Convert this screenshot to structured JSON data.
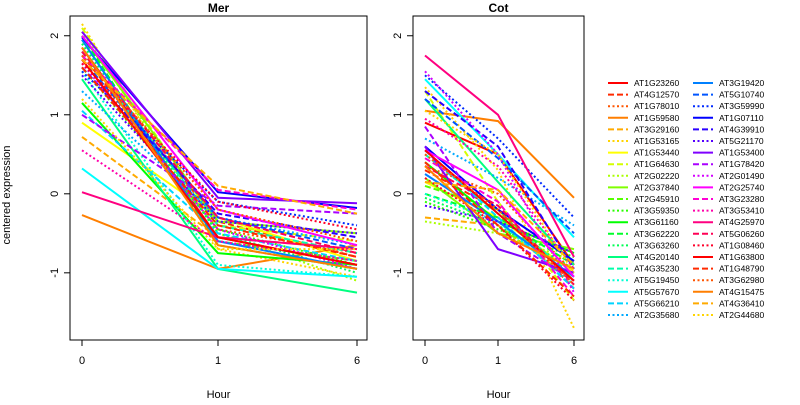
{
  "chart_data": {
    "type": "line",
    "ylabel": "centered expression",
    "xlabel": "Hour",
    "x_ticks": [
      "0",
      "1",
      "6"
    ],
    "y_ticks": [
      "2",
      "1",
      "0",
      "-1"
    ],
    "ylim": [
      -1.85,
      2.25
    ],
    "panels": [
      {
        "title": "Mer",
        "series": [
          {
            "name": "AT1G23260",
            "values": [
              1.85,
              -0.55,
              -0.9
            ]
          },
          {
            "name": "AT4G12570",
            "values": [
              1.75,
              -0.35,
              -0.8
            ]
          },
          {
            "name": "AT1G78010",
            "values": [
              1.7,
              -0.45,
              -0.75
            ]
          },
          {
            "name": "AT1G59580",
            "values": [
              -0.27,
              -0.95,
              -0.65
            ]
          },
          {
            "name": "AT3G29160",
            "values": [
              0.72,
              -0.55,
              -0.7
            ]
          },
          {
            "name": "AT1G53165",
            "values": [
              2.15,
              -0.7,
              -1.05
            ]
          },
          {
            "name": "AT1G53440",
            "values": [
              0.9,
              -0.3,
              -0.85
            ]
          },
          {
            "name": "AT1G64630",
            "values": [
              2.1,
              -0.4,
              -0.6
            ]
          },
          {
            "name": "AT2G02220",
            "values": [
              2.05,
              -0.5,
              -1.1
            ]
          },
          {
            "name": "AT2G37840",
            "values": [
              2.0,
              -0.35,
              -0.5
            ]
          },
          {
            "name": "AT2G45910",
            "values": [
              1.95,
              -0.6,
              -0.85
            ]
          },
          {
            "name": "AT3G59350",
            "values": [
              1.6,
              -0.45,
              -0.9
            ]
          },
          {
            "name": "AT3G61160",
            "values": [
              1.15,
              -0.75,
              -0.9
            ]
          },
          {
            "name": "AT3G62220",
            "values": [
              2.0,
              -0.65,
              -0.95
            ]
          },
          {
            "name": "AT3G63260",
            "values": [
              1.9,
              -0.5,
              -1.0
            ]
          },
          {
            "name": "AT4G20140",
            "values": [
              1.45,
              -0.95,
              -1.25
            ]
          },
          {
            "name": "AT4G35230",
            "values": [
              1.8,
              -0.4,
              -0.75
            ]
          },
          {
            "name": "AT5G19450",
            "values": [
              1.55,
              -0.9,
              -1.05
            ]
          },
          {
            "name": "AT5G57670",
            "values": [
              0.32,
              -0.95,
              -1.05
            ]
          },
          {
            "name": "AT5G66210",
            "values": [
              1.05,
              -0.5,
              -0.85
            ]
          },
          {
            "name": "AT2G35680",
            "values": [
              1.3,
              -0.3,
              -0.65
            ]
          },
          {
            "name": "AT3G19420",
            "values": [
              1.95,
              -0.6,
              -0.95
            ]
          },
          {
            "name": "AT5G10740",
            "values": [
              1.7,
              -0.3,
              -0.7
            ]
          },
          {
            "name": "AT3G59990",
            "values": [
              1.55,
              -0.1,
              -0.4
            ]
          },
          {
            "name": "AT1G07110",
            "values": [
              1.98,
              0.02,
              -0.18
            ]
          },
          {
            "name": "AT4G39910",
            "values": [
              1.6,
              -0.25,
              -0.55
            ]
          },
          {
            "name": "AT5G21170",
            "values": [
              1.5,
              -0.35,
              -0.5
            ]
          },
          {
            "name": "AT1G53400",
            "values": [
              2.05,
              -0.05,
              -0.12
            ]
          },
          {
            "name": "AT1G78420",
            "values": [
              1.0,
              -0.15,
              -0.25
            ]
          },
          {
            "name": "AT2G01490",
            "values": [
              1.65,
              -0.45,
              -0.95
            ]
          },
          {
            "name": "AT2G25740",
            "values": [
              2.0,
              -0.2,
              -0.65
            ]
          },
          {
            "name": "AT3G23280",
            "values": [
              1.75,
              0.05,
              -0.2
            ]
          },
          {
            "name": "AT3G53410",
            "values": [
              0.55,
              -0.6,
              -0.85
            ]
          },
          {
            "name": "AT4G25970",
            "values": [
              0.02,
              -0.55,
              -0.7
            ]
          },
          {
            "name": "AT5G06260",
            "values": [
              1.8,
              -0.3,
              -0.75
            ]
          },
          {
            "name": "AT1G08460",
            "values": [
              1.65,
              -0.1,
              -0.45
            ]
          },
          {
            "name": "AT1G63800",
            "values": [
              1.7,
              -0.55,
              -0.9
            ]
          },
          {
            "name": "AT1G48790",
            "values": [
              1.6,
              -0.4,
              -0.8
            ]
          },
          {
            "name": "AT3G62980",
            "values": [
              1.75,
              -0.2,
              -0.6
            ]
          },
          {
            "name": "AT4G15475",
            "values": [
              1.85,
              -0.65,
              -0.95
            ]
          },
          {
            "name": "AT4G36410",
            "values": [
              1.7,
              0.1,
              -0.25
            ]
          },
          {
            "name": "AT2G44680",
            "values": [
              1.2,
              -0.7,
              -0.7
            ]
          }
        ]
      },
      {
        "title": "Cot",
        "series": [
          {
            "name": "AT1G23260",
            "values": [
              0.9,
              0.5,
              -0.9
            ]
          },
          {
            "name": "AT4G12570",
            "values": [
              0.3,
              -0.2,
              -1.2
            ]
          },
          {
            "name": "AT1G78010",
            "values": [
              0.35,
              0.0,
              -1.0
            ]
          },
          {
            "name": "AT1G59580",
            "values": [
              1.05,
              0.92,
              -0.05
            ]
          },
          {
            "name": "AT3G29160",
            "values": [
              -0.3,
              -0.4,
              -1.1
            ]
          },
          {
            "name": "AT1G53165",
            "values": [
              1.35,
              0.3,
              -1.7
            ]
          },
          {
            "name": "AT1G53440",
            "values": [
              0.15,
              -0.3,
              -1.0
            ]
          },
          {
            "name": "AT1G64630",
            "values": [
              1.3,
              -0.1,
              -1.35
            ]
          },
          {
            "name": "AT2G02220",
            "values": [
              -0.35,
              -0.5,
              -0.85
            ]
          },
          {
            "name": "AT2G37840",
            "values": [
              0.2,
              -0.5,
              -0.7
            ]
          },
          {
            "name": "AT2G45910",
            "values": [
              0.1,
              -0.2,
              -1.1
            ]
          },
          {
            "name": "AT3G59350",
            "values": [
              -0.1,
              -0.45,
              -0.8
            ]
          },
          {
            "name": "AT3G61160",
            "values": [
              0.4,
              -0.35,
              -0.75
            ]
          },
          {
            "name": "AT3G62220",
            "values": [
              0.0,
              -0.3,
              -0.9
            ]
          },
          {
            "name": "AT3G63260",
            "values": [
              -0.05,
              -0.4,
              -0.95
            ]
          },
          {
            "name": "AT4G20140",
            "values": [
              1.2,
              0.15,
              -0.9
            ]
          },
          {
            "name": "AT4G35230",
            "values": [
              0.5,
              -0.25,
              -1.05
            ]
          },
          {
            "name": "AT5G19450",
            "values": [
              0.0,
              -0.35,
              -1.15
            ]
          },
          {
            "name": "AT5G57670",
            "values": [
              1.45,
              0.5,
              -0.55
            ]
          },
          {
            "name": "AT5G66210",
            "values": [
              0.55,
              -0.3,
              -1.2
            ]
          },
          {
            "name": "AT2G35680",
            "values": [
              0.7,
              0.2,
              -0.4
            ]
          },
          {
            "name": "AT3G19420",
            "values": [
              0.25,
              -0.35,
              -1.05
            ]
          },
          {
            "name": "AT5G10740",
            "values": [
              1.2,
              0.45,
              -0.5
            ]
          },
          {
            "name": "AT3G59990",
            "values": [
              1.5,
              0.7,
              -0.3
            ]
          },
          {
            "name": "AT1G07110",
            "values": [
              0.6,
              -0.2,
              -0.85
            ]
          },
          {
            "name": "AT4G39910",
            "values": [
              1.3,
              0.6,
              -0.95
            ]
          },
          {
            "name": "AT5G21170",
            "values": [
              -0.15,
              -0.35,
              -0.75
            ]
          },
          {
            "name": "AT1G53400",
            "values": [
              0.6,
              -0.7,
              -1.0
            ]
          },
          {
            "name": "AT1G78420",
            "values": [
              0.85,
              -0.5,
              -1.1
            ]
          },
          {
            "name": "AT2G01490",
            "values": [
              1.55,
              0.5,
              -1.25
            ]
          },
          {
            "name": "AT2G25740",
            "values": [
              0.55,
              0.05,
              -1.05
            ]
          },
          {
            "name": "AT3G23280",
            "values": [
              0.45,
              -0.1,
              -1.3
            ]
          },
          {
            "name": "AT3G53410",
            "values": [
              0.95,
              0.35,
              -0.95
            ]
          },
          {
            "name": "AT4G25970",
            "values": [
              1.75,
              1.0,
              -0.8
            ]
          },
          {
            "name": "AT5G06260",
            "values": [
              0.35,
              -0.15,
              -1.15
            ]
          },
          {
            "name": "AT1G08460",
            "values": [
              0.2,
              -0.4,
              -1.35
            ]
          },
          {
            "name": "AT1G63800",
            "values": [
              0.55,
              -0.25,
              -1.1
            ]
          },
          {
            "name": "AT1G48790",
            "values": [
              0.4,
              -0.4,
              -1.3
            ]
          },
          {
            "name": "AT3G62980",
            "values": [
              0.5,
              -0.2,
              -1.15
            ]
          },
          {
            "name": "AT4G15475",
            "values": [
              0.35,
              -0.5,
              -0.95
            ]
          },
          {
            "name": "AT4G36410",
            "values": [
              0.15,
              0.05,
              -0.9
            ]
          },
          {
            "name": "AT2G44680",
            "values": [
              1.05,
              0.5,
              -1.0
            ]
          }
        ]
      }
    ],
    "legend": [
      {
        "name": "AT1G23260",
        "color": "#ff0000",
        "dash": "solid"
      },
      {
        "name": "AT4G12570",
        "color": "#ff2a00",
        "dash": "dashed"
      },
      {
        "name": "AT1G78010",
        "color": "#ff5500",
        "dash": "dotted"
      },
      {
        "name": "AT1G59580",
        "color": "#ff7f00",
        "dash": "solid"
      },
      {
        "name": "AT3G29160",
        "color": "#ffaa00",
        "dash": "dashed"
      },
      {
        "name": "AT1G53165",
        "color": "#ffd400",
        "dash": "dotted"
      },
      {
        "name": "AT1G53440",
        "color": "#ffff00",
        "dash": "solid"
      },
      {
        "name": "AT1G64630",
        "color": "#d4ff00",
        "dash": "dashed"
      },
      {
        "name": "AT2G02220",
        "color": "#aaff00",
        "dash": "dotted"
      },
      {
        "name": "AT2G37840",
        "color": "#80ff00",
        "dash": "solid"
      },
      {
        "name": "AT2G45910",
        "color": "#55ff00",
        "dash": "dashed"
      },
      {
        "name": "AT3G59350",
        "color": "#2aff00",
        "dash": "dotted"
      },
      {
        "name": "AT3G61160",
        "color": "#00ff00",
        "dash": "solid"
      },
      {
        "name": "AT3G62220",
        "color": "#00ff2a",
        "dash": "dashed"
      },
      {
        "name": "AT3G63260",
        "color": "#00ff55",
        "dash": "dotted"
      },
      {
        "name": "AT4G20140",
        "color": "#00ff80",
        "dash": "solid"
      },
      {
        "name": "AT4G35230",
        "color": "#00ffaa",
        "dash": "dashed"
      },
      {
        "name": "AT5G19450",
        "color": "#00ffd4",
        "dash": "dotted"
      },
      {
        "name": "AT5G57670",
        "color": "#00ffff",
        "dash": "solid"
      },
      {
        "name": "AT5G66210",
        "color": "#00d4ff",
        "dash": "dashed"
      },
      {
        "name": "AT2G35680",
        "color": "#00aaff",
        "dash": "dotted"
      },
      {
        "name": "AT3G19420",
        "color": "#0080ff",
        "dash": "solid"
      },
      {
        "name": "AT5G10740",
        "color": "#0055ff",
        "dash": "dashed"
      },
      {
        "name": "AT3G59990",
        "color": "#002aff",
        "dash": "dotted"
      },
      {
        "name": "AT1G07110",
        "color": "#0000ff",
        "dash": "solid"
      },
      {
        "name": "AT4G39910",
        "color": "#2a00ff",
        "dash": "dashed"
      },
      {
        "name": "AT5G21170",
        "color": "#5500ff",
        "dash": "dotted"
      },
      {
        "name": "AT1G53400",
        "color": "#7f00ff",
        "dash": "solid"
      },
      {
        "name": "AT1G78420",
        "color": "#aa00ff",
        "dash": "dashed"
      },
      {
        "name": "AT2G01490",
        "color": "#d400ff",
        "dash": "dotted"
      },
      {
        "name": "AT2G25740",
        "color": "#ff00ff",
        "dash": "solid"
      },
      {
        "name": "AT3G23280",
        "color": "#ff00d4",
        "dash": "dashed"
      },
      {
        "name": "AT3G53410",
        "color": "#ff00aa",
        "dash": "dotted"
      },
      {
        "name": "AT4G25970",
        "color": "#ff0080",
        "dash": "solid"
      },
      {
        "name": "AT5G06260",
        "color": "#ff0055",
        "dash": "dashed"
      },
      {
        "name": "AT1G08460",
        "color": "#ff002a",
        "dash": "dotted"
      },
      {
        "name": "AT1G63800",
        "color": "#ff0000",
        "dash": "solid"
      },
      {
        "name": "AT1G48790",
        "color": "#ff2a00",
        "dash": "dashed"
      },
      {
        "name": "AT3G62980",
        "color": "#ff5500",
        "dash": "dotted"
      },
      {
        "name": "AT4G15475",
        "color": "#ff7f00",
        "dash": "solid"
      },
      {
        "name": "AT4G36410",
        "color": "#ffaa00",
        "dash": "dashed"
      },
      {
        "name": "AT2G44680",
        "color": "#ffd400",
        "dash": "dotted"
      }
    ]
  }
}
